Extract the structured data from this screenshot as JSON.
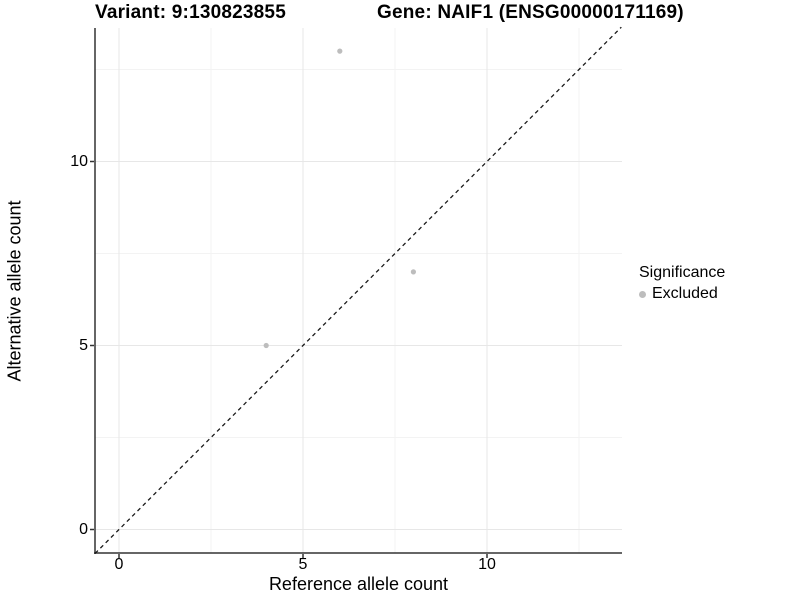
{
  "titles": {
    "variant": "Variant: 9:130823855",
    "gene": "Gene: NAIF1 (ENSG00000171169)"
  },
  "axes": {
    "x": {
      "label": "Reference allele count"
    },
    "y": {
      "label": "Alternative allele count"
    }
  },
  "legend": {
    "title": "Significance",
    "items": [
      {
        "label": "Excluded",
        "color": "#bdbdbd"
      }
    ]
  },
  "colors": {
    "background": "#ffffff",
    "grid_major": "#e7e7e7",
    "grid_minor": "#f3f3f3",
    "axis_line": "#333333",
    "tick_mark": "#333333",
    "identity_line": "#1a1a1a",
    "point": "#bdbdbd",
    "text": "#000000"
  },
  "chart_data": {
    "type": "scatter",
    "title": "Variant: 9:130823855 | Gene: NAIF1 (ENSG00000171169)",
    "xlabel": "Reference allele count",
    "ylabel": "Alternative allele count",
    "xlim": [
      -0.65,
      13.65
    ],
    "ylim": [
      -0.65,
      13.65
    ],
    "x_ticks": [
      0,
      5,
      10
    ],
    "y_ticks": [
      0,
      5,
      10
    ],
    "x_minor_gridlines": [
      2.5,
      7.5,
      12.5
    ],
    "y_minor_gridlines": [
      2.5,
      7.5,
      12.5
    ],
    "grid": true,
    "legend_position": "right",
    "series": [
      {
        "name": "Excluded",
        "color": "#bdbdbd",
        "points": [
          [
            4,
            5
          ],
          [
            6,
            13
          ],
          [
            8,
            7
          ]
        ]
      }
    ],
    "reference_line": {
      "style": "dashed",
      "slope": 1,
      "intercept": 0
    }
  }
}
